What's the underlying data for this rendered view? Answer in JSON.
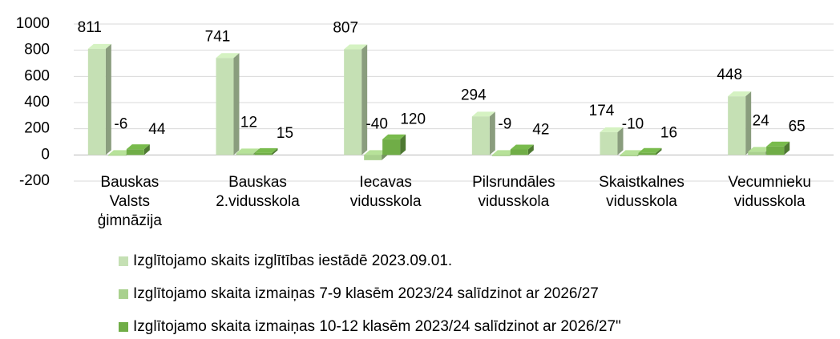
{
  "chart_data": {
    "type": "bar3d",
    "categories": [
      [
        "Bauskas",
        "Valsts",
        "ģimnāzija"
      ],
      [
        "Bauskas",
        "2.vidusskola"
      ],
      [
        "Iecavas",
        "vidusskola"
      ],
      [
        "Pilsrundāles",
        "vidusskola"
      ],
      [
        "Skaistkalnes",
        "vidusskola"
      ],
      [
        "Vecumnieku",
        "vidusskola"
      ]
    ],
    "series": [
      {
        "name": "Izglītojamo skaits izglītības iestādē 2023.09.01.",
        "color": "#c5e0b4",
        "values": [
          811,
          741,
          807,
          294,
          174,
          448
        ]
      },
      {
        "name": "Izglītojamo skaita izmaiņas 7-9 klasēm 2023/24 salīdzinot ar 2026/27",
        "color": "#a9d18e",
        "values": [
          -6,
          12,
          -40,
          -9,
          -10,
          24
        ]
      },
      {
        "name": "Izglītojamo skaita izmaiņas 10-12 klasēm 2023/24 salīdzinot ar 2026/27\"",
        "color": "#70ad47",
        "values": [
          44,
          15,
          120,
          42,
          16,
          65
        ]
      }
    ],
    "ylim": [
      -200,
      1000
    ],
    "yticks": [
      -200,
      0,
      200,
      400,
      600,
      800,
      1000
    ],
    "grid": true,
    "legend": "bottom"
  }
}
